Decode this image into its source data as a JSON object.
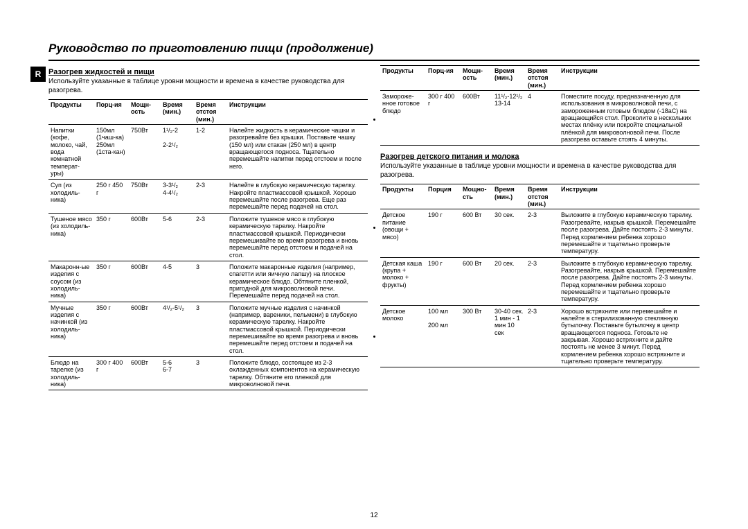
{
  "page_number": "12",
  "title": "Руководство по приготовлению пищи (продолжение)",
  "badge": "R",
  "left": {
    "heading": "Разогрев жидкостей и пищи",
    "intro": "Используйте указанные в таблице уровни мощности и времена в качестве руководства для разогрева.",
    "headers": [
      "Продукты",
      "Порц-ия",
      "Мощн-ость",
      "Время (мин.)",
      "Время отстоя (мин.)",
      "Инструкции"
    ],
    "rows": [
      {
        "c": [
          "Напитки (кофе, молоко, чай, вода комнатной температ-уры)",
          "150мл (1чаш-ка) 250мл (1ста-кан)",
          "750Вт",
          "1¹/₂-2\n\n2-2¹/₂",
          "1-2",
          "Налейте жидкость в керамические чашки и разогревайте без крышки. Поставьте чашку (150 мл) или стакан (250 мл) в центр вращающегося подноса. Тщательно перемешайте напитки перед отстоем и после него."
        ]
      },
      {
        "c": [
          "Суп (из холодиль-ника)",
          "250 г 450 г",
          "750Вт",
          "3-3¹/₂\n4-4¹/₂",
          "2-3",
          "Налейте в глубокую керамическую тарелку. Накройте пластмассовой крышкой. Хорошо перемешайте после разогрева. Еще раз перемешайте перед подачей на стол."
        ]
      },
      {
        "c": [
          "Тушеное мясо (из холодиль-ника)",
          "350 г",
          "600Вт",
          "5-6",
          "2-3",
          "Положите тушеное мясо в глубокую керамическую тарелку. Накройте пластмассовой крышкой. Периодически перемешивайте во время разогрева и вновь перемешайте перед отстоем и подачей на стол."
        ]
      },
      {
        "c": [
          "Макаронн-ые изделия с соусом (из холодиль-ника)",
          "350 г",
          "600Вт",
          "4-5",
          "3",
          "Положите макаронные изделия (например, спагетти или яичную лапшу) на плоское керамическое блюдо. Обтяните пленкой, пригодной для микроволновой печи. Перемешайте перед подачей на стол."
        ]
      },
      {
        "c": [
          "Мучные изделия с начинкой (из холодиль-ника)",
          "350 г",
          "600Вт",
          "4¹/₂-5¹/₂",
          "3",
          "Положите мучные изделия с начинкой (например, вареники, пельмени) в глубокую керамическую тарелку. Накройте пластмассовой крышкой. Периодически перемешивайте во время разогрева и вновь перемешайте перед отстоем и подачей на стол."
        ]
      },
      {
        "c": [
          "Блюдо на тарелке (из холодиль-ника)",
          "300 г 400 г",
          "600Вт",
          "5-6\n6-7",
          "3",
          "Положите блюдо, состоящее из 2-3 охлажденных компонентов на керамическую тарелку. Обтяните его пленкой для микроволновой печи."
        ]
      }
    ]
  },
  "rightTop": {
    "headers": [
      "Продукты",
      "Порц-ия",
      "Мощн-ость",
      "Время (мин.)",
      "Время отстоя (мин.)",
      "Инструкции"
    ],
    "rows": [
      {
        "c": [
          "Замороже-нное готовое блюдо",
          "300 г 400 г",
          "600Вт",
          "11¹/₂-12¹/₂\n13-14",
          "4",
          "Поместите посуду, предназначенную для использования в микроволновой печи, с замороженным готовым блюдом (-18аС) на вращающийся стол. Проколите в нескольких местах плёнку или покройте специальной плёнкой для микроволновой печи. После разогрева оставьте стоять 4 минуты."
        ]
      }
    ]
  },
  "rightMid": {
    "heading": "Разогрев детского питания и молока",
    "intro": "Используйте указанные в таблице уровни мощности и времена в качестве руководства для разогрева.",
    "headers": [
      "Продукты",
      "Порция",
      "Мощно-сть",
      "Время (мин.)",
      "Время отстоя (мин.)",
      "Инструкции"
    ],
    "rows": [
      {
        "c": [
          "Детское питание (овощи + мясо)",
          "190 г",
          "600 Вт",
          "30 сек.",
          "2-3",
          "Выложите в глубокую керамическую тарелку. Разогревайте, накрыв крышкой. Перемешайте после разогрева. Дайте постоять 2-3 минуты. Перед кормлением ребенка хорошо перемешайте и тщательно проверьте температуру."
        ]
      },
      {
        "c": [
          "Детская каша (крупа + молоко + фрукты)",
          "190 г",
          "600 Вт",
          "20 сек.",
          "2-3",
          "Выложите в глубокую керамическую тарелку. Разогревайте, накрыв крышкой. Перемешайте после разогрева. Дайте постоять 2-3 минуты. Перед кормлением ребенка хорошо перемешайте и тщательно проверьте температуру."
        ]
      },
      {
        "c": [
          "Детское молоко",
          "100 мл\n\n200 мл",
          "300 Вт",
          "30-40 сек.\n1 мин - 1 мин 10 сек",
          "2-3",
          "Хорошо встряхните или перемешайте и налейте в стерилизованную стеклянную бутылочку. Поставьте бутылочку в центр вращающегося подноса. Готовьте не закрывая. Хорошо встряхните и дайте постоять не менее 3 минут. Перед кормлением ребенка хорошо встряхните и тщательно проверьте температуру."
        ]
      }
    ]
  }
}
